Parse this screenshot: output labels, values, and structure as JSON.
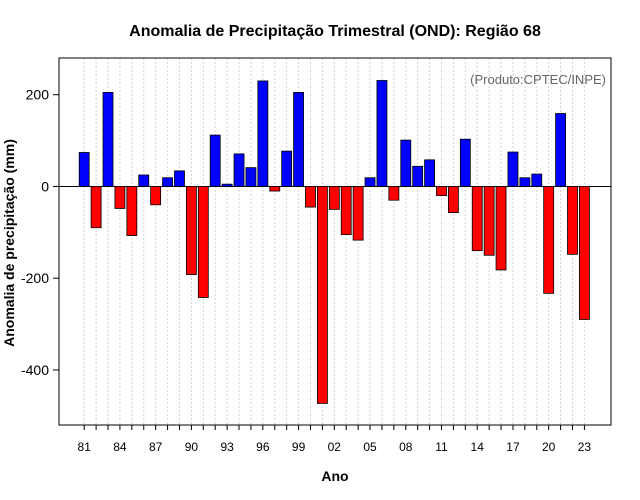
{
  "chart_data": {
    "type": "bar",
    "title": "Anomalia de Precipitação Trimestral (OND): Região 68",
    "xlabel": "Ano",
    "ylabel": "Anomalia de precipitação (mm)",
    "credit": "(Produto:CPTEC/INPE)",
    "ylim": [
      -520,
      280
    ],
    "yticks": [
      200,
      0,
      -200,
      -400
    ],
    "xtick_labels": [
      "81",
      "84",
      "87",
      "90",
      "93",
      "96",
      "99",
      "02",
      "05",
      "08",
      "11",
      "14",
      "17",
      "20",
      "23"
    ],
    "grid": true,
    "colors": {
      "positive": "#0000ff",
      "negative": "#ff0000",
      "edge": "#000000",
      "grid": "#d3d3d3"
    },
    "categories": [
      "81",
      "82",
      "83",
      "84",
      "85",
      "86",
      "87",
      "88",
      "89",
      "90",
      "91",
      "92",
      "93",
      "94",
      "95",
      "96",
      "97",
      "98",
      "99",
      "00",
      "01",
      "02",
      "03",
      "04",
      "05",
      "06",
      "07",
      "08",
      "09",
      "10",
      "11",
      "12",
      "13",
      "14",
      "15",
      "16",
      "17",
      "18",
      "19",
      "20",
      "21",
      "22",
      "23"
    ],
    "values": [
      74,
      -90,
      205,
      -48,
      -107,
      25,
      -40,
      19,
      34,
      -192,
      -242,
      112,
      5,
      71,
      41,
      230,
      -10,
      77,
      205,
      -45,
      -473,
      -50,
      -105,
      -117,
      19,
      231,
      -30,
      101,
      44,
      58,
      -20,
      -57,
      103,
      -140,
      -150,
      -182,
      75,
      19,
      27,
      -233,
      159,
      -148,
      -290
    ]
  }
}
